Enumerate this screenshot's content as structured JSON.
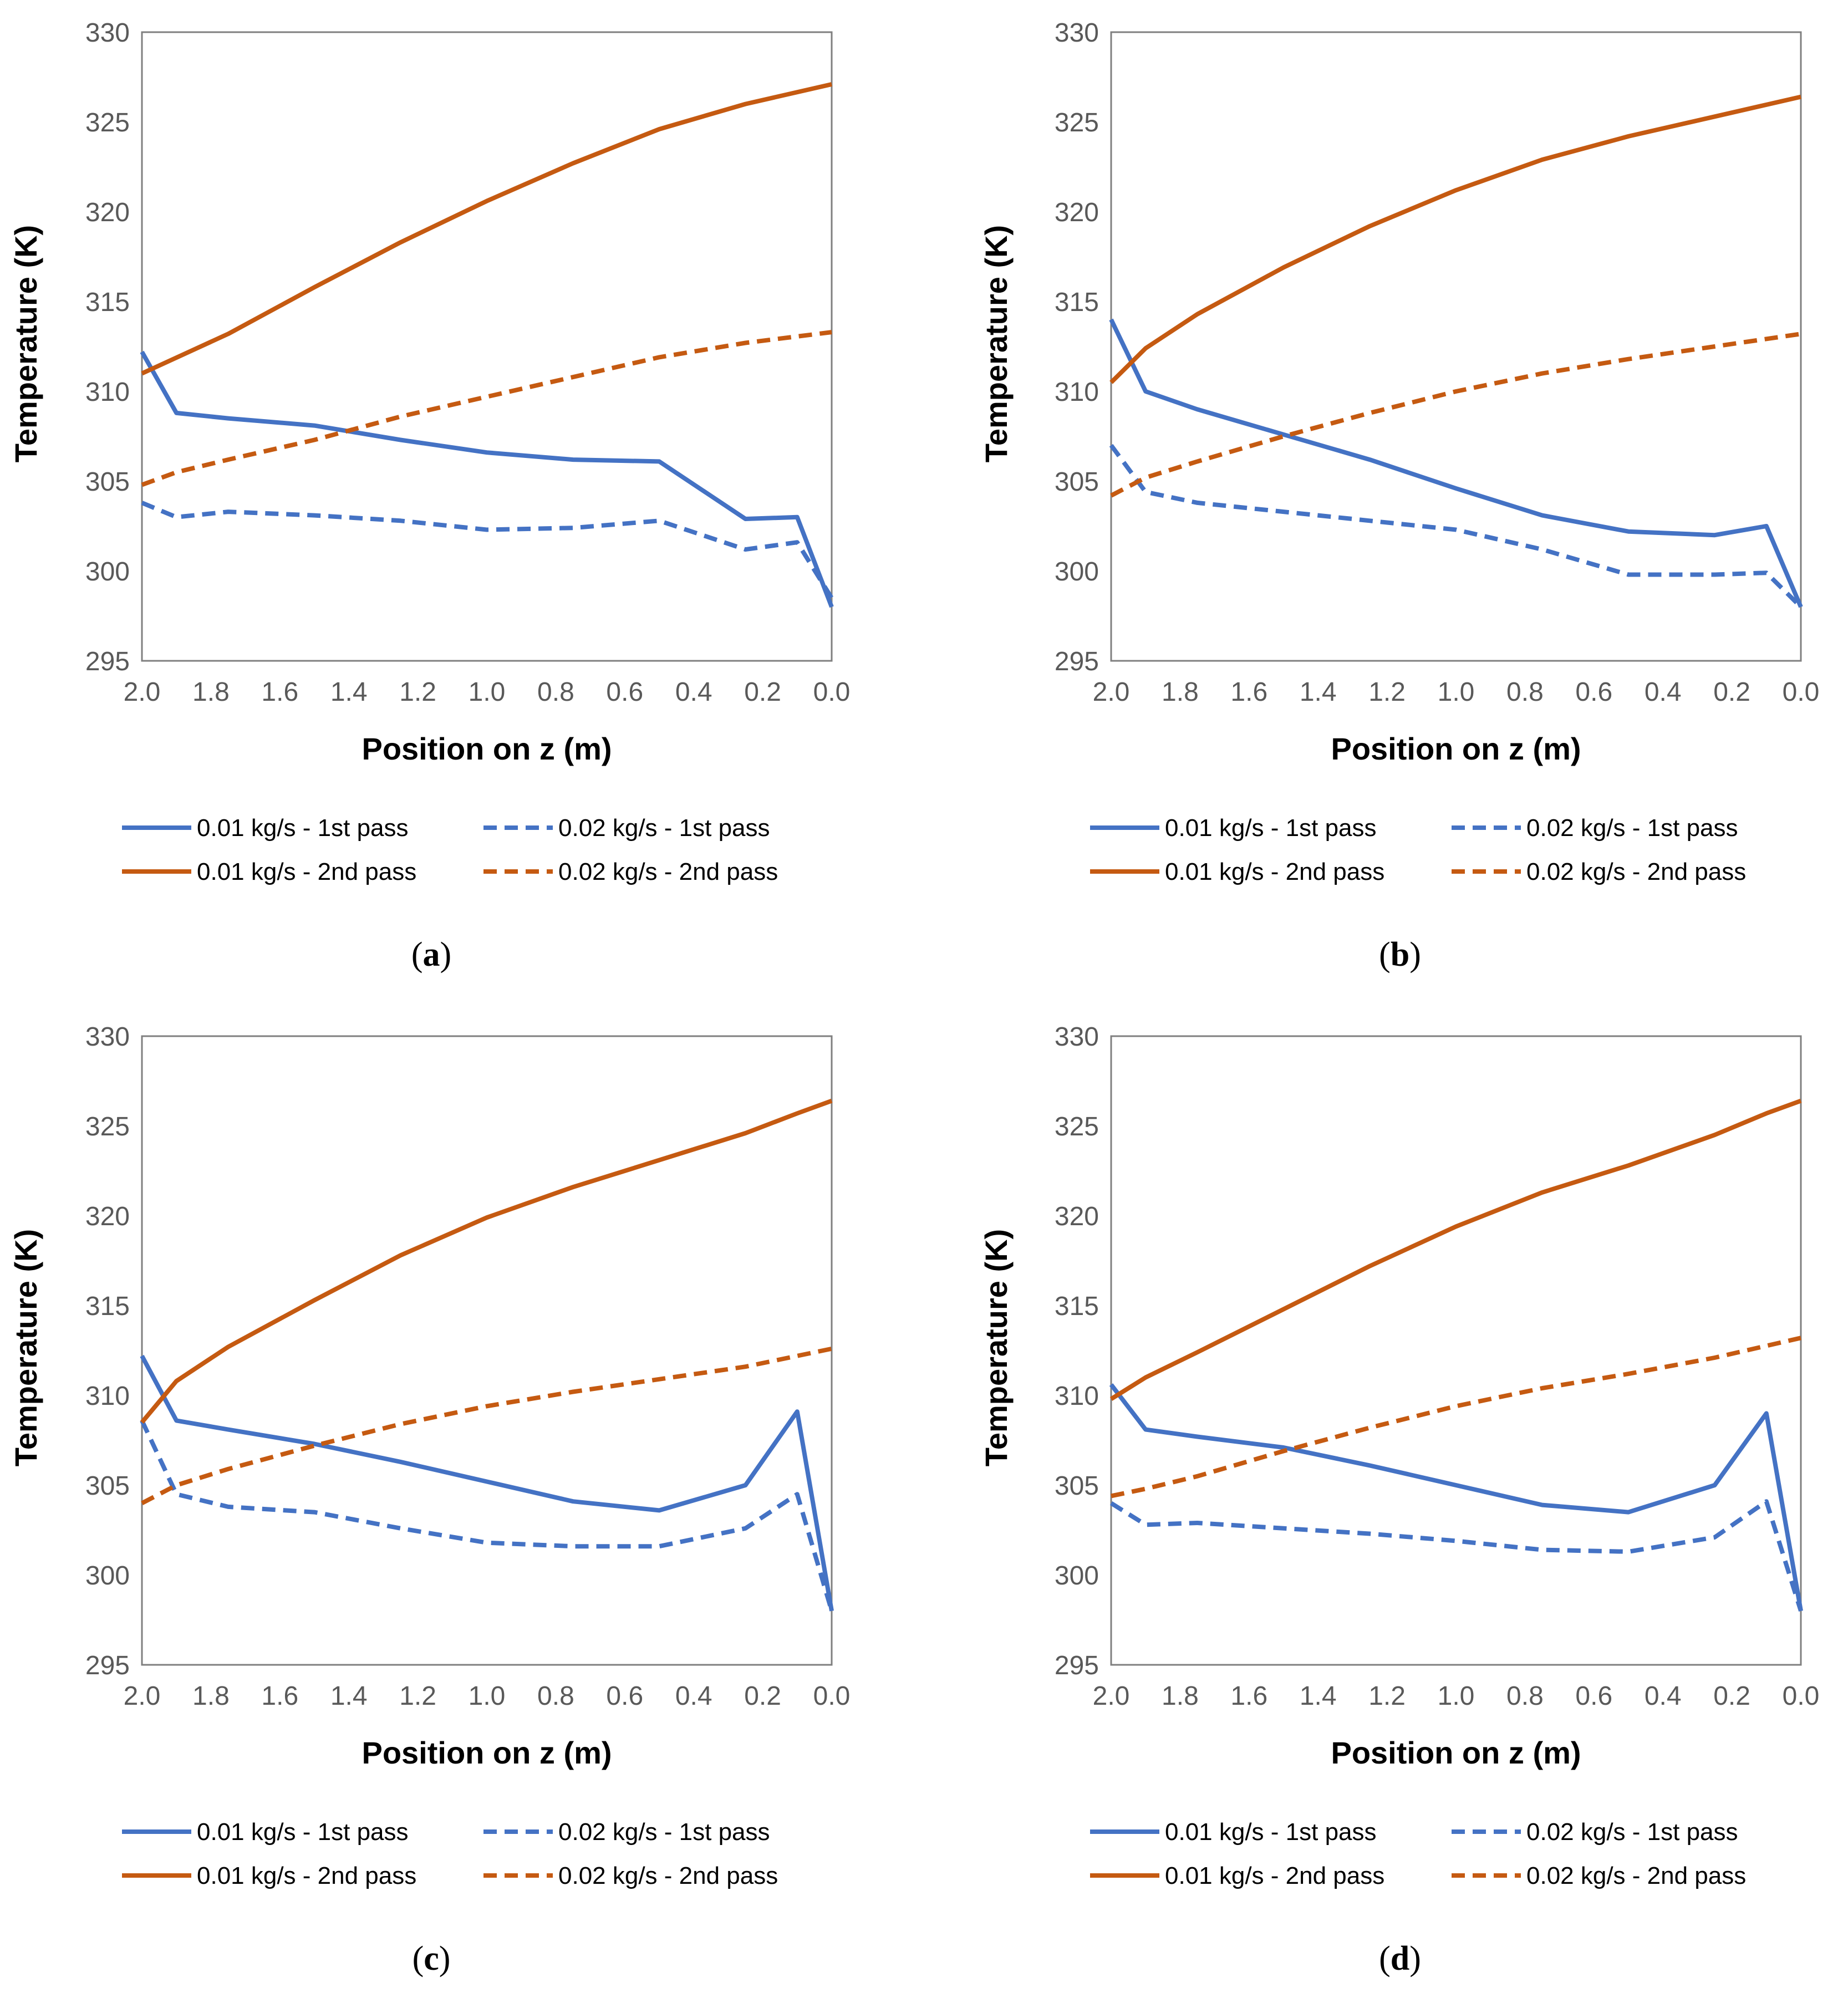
{
  "colors": {
    "blue": "#4472C4",
    "orange": "#C55A11",
    "axis": "#7f7f7f",
    "tick_text": "#595959"
  },
  "chart_data": [
    {
      "id": "a",
      "caption_open": "(",
      "caption_letter": "a",
      "caption_close": ")",
      "type": "line",
      "xlabel": "Position on z (m)",
      "ylabel": "Temperature (K)",
      "xlim": [
        2.0,
        0.0
      ],
      "ylim": [
        295,
        330
      ],
      "xticks": [
        "2.0",
        "1.8",
        "1.6",
        "1.4",
        "1.2",
        "1.0",
        "0.8",
        "0.6",
        "0.4",
        "0.2",
        "0.0"
      ],
      "yticks": [
        "295",
        "300",
        "305",
        "310",
        "315",
        "320",
        "325",
        "330"
      ],
      "series": [
        {
          "name": "0.01 kg/s - 1st pass",
          "color": "blue",
          "dashed": false,
          "x": [
            2.0,
            1.9,
            1.75,
            1.5,
            1.25,
            1.0,
            0.75,
            0.5,
            0.25,
            0.1,
            0.0
          ],
          "y": [
            312.2,
            308.8,
            308.5,
            308.1,
            307.3,
            306.6,
            306.2,
            306.1,
            302.9,
            303.0,
            298.0
          ]
        },
        {
          "name": "0.02 kg/s - 1st pass",
          "color": "blue",
          "dashed": true,
          "x": [
            2.0,
            1.9,
            1.75,
            1.5,
            1.25,
            1.0,
            0.75,
            0.5,
            0.25,
            0.1,
            0.0
          ],
          "y": [
            303.8,
            303.0,
            303.3,
            303.1,
            302.8,
            302.3,
            302.4,
            302.8,
            301.2,
            301.6,
            298.5
          ]
        },
        {
          "name": "0.01 kg/s - 2nd pass",
          "color": "orange",
          "dashed": false,
          "x": [
            2.0,
            1.75,
            1.5,
            1.25,
            1.0,
            0.75,
            0.5,
            0.25,
            0.0
          ],
          "y": [
            311.0,
            313.2,
            315.8,
            318.3,
            320.6,
            322.7,
            324.6,
            326.0,
            327.1
          ]
        },
        {
          "name": "0.02 kg/s - 2nd pass",
          "color": "orange",
          "dashed": true,
          "x": [
            2.0,
            1.9,
            1.75,
            1.5,
            1.25,
            1.0,
            0.75,
            0.5,
            0.25,
            0.0
          ],
          "y": [
            304.8,
            305.5,
            306.2,
            307.3,
            308.6,
            309.7,
            310.8,
            311.9,
            312.7,
            313.3
          ]
        }
      ]
    },
    {
      "id": "b",
      "caption_open": "(",
      "caption_letter": "b",
      "caption_close": ")",
      "type": "line",
      "xlabel": "Position on z (m)",
      "ylabel": "Temperature (K)",
      "xlim": [
        2.0,
        0.0
      ],
      "ylim": [
        295,
        330
      ],
      "xticks": [
        "2.0",
        "1.8",
        "1.6",
        "1.4",
        "1.2",
        "1.0",
        "0.8",
        "0.6",
        "0.4",
        "0.2",
        "0.0"
      ],
      "yticks": [
        "295",
        "300",
        "305",
        "310",
        "315",
        "320",
        "325",
        "330"
      ],
      "series": [
        {
          "name": "0.01 kg/s - 1st pass",
          "color": "blue",
          "dashed": false,
          "x": [
            2.0,
            1.9,
            1.75,
            1.5,
            1.25,
            1.0,
            0.75,
            0.5,
            0.25,
            0.1,
            0.0
          ],
          "y": [
            314.0,
            310.0,
            309.0,
            307.6,
            306.2,
            304.6,
            303.1,
            302.2,
            302.0,
            302.5,
            298.0
          ]
        },
        {
          "name": "0.02 kg/s - 1st pass",
          "color": "blue",
          "dashed": true,
          "x": [
            2.0,
            1.9,
            1.75,
            1.5,
            1.25,
            1.0,
            0.75,
            0.5,
            0.25,
            0.1,
            0.0
          ],
          "y": [
            307.0,
            304.4,
            303.8,
            303.3,
            302.8,
            302.3,
            301.2,
            299.8,
            299.8,
            299.9,
            298.0
          ]
        },
        {
          "name": "0.01 kg/s - 2nd pass",
          "color": "orange",
          "dashed": false,
          "x": [
            2.0,
            1.9,
            1.75,
            1.5,
            1.25,
            1.0,
            0.75,
            0.5,
            0.25,
            0.0
          ],
          "y": [
            310.5,
            312.4,
            314.3,
            316.9,
            319.2,
            321.2,
            322.9,
            324.2,
            325.3,
            326.4
          ]
        },
        {
          "name": "0.02 kg/s - 2nd pass",
          "color": "orange",
          "dashed": true,
          "x": [
            2.0,
            1.9,
            1.75,
            1.5,
            1.25,
            1.0,
            0.75,
            0.5,
            0.25,
            0.0
          ],
          "y": [
            304.2,
            305.2,
            306.1,
            307.5,
            308.8,
            310.0,
            311.0,
            311.8,
            312.5,
            313.2
          ]
        }
      ]
    },
    {
      "id": "c",
      "caption_open": "(",
      "caption_letter": "c",
      "caption_close": ")",
      "type": "line",
      "xlabel": "Position on z (m)",
      "ylabel": "Temperature (K)",
      "xlim": [
        2.0,
        0.0
      ],
      "ylim": [
        295,
        330
      ],
      "xticks": [
        "2.0",
        "1.8",
        "1.6",
        "1.4",
        "1.2",
        "1.0",
        "0.8",
        "0.6",
        "0.4",
        "0.2",
        "0.0"
      ],
      "yticks": [
        "295",
        "300",
        "305",
        "310",
        "315",
        "320",
        "325",
        "330"
      ],
      "series": [
        {
          "name": "0.01 kg/s - 1st pass",
          "color": "blue",
          "dashed": false,
          "x": [
            2.0,
            1.9,
            1.75,
            1.5,
            1.25,
            1.0,
            0.75,
            0.5,
            0.25,
            0.1,
            0.0
          ],
          "y": [
            312.2,
            308.6,
            308.1,
            307.3,
            306.3,
            305.2,
            304.1,
            303.6,
            305.0,
            309.1,
            298.0
          ]
        },
        {
          "name": "0.02 kg/s - 1st pass",
          "color": "blue",
          "dashed": true,
          "x": [
            2.0,
            1.9,
            1.75,
            1.5,
            1.25,
            1.0,
            0.75,
            0.5,
            0.25,
            0.1,
            0.0
          ],
          "y": [
            308.6,
            304.5,
            303.8,
            303.5,
            302.6,
            301.8,
            301.6,
            301.6,
            302.6,
            304.5,
            298.0
          ]
        },
        {
          "name": "0.01 kg/s - 2nd pass",
          "color": "orange",
          "dashed": false,
          "x": [
            2.0,
            1.9,
            1.75,
            1.5,
            1.25,
            1.0,
            0.75,
            0.5,
            0.25,
            0.1,
            0.0
          ],
          "y": [
            308.5,
            310.8,
            312.7,
            315.3,
            317.8,
            319.9,
            321.6,
            323.1,
            324.6,
            325.7,
            326.4
          ]
        },
        {
          "name": "0.02 kg/s - 2nd pass",
          "color": "orange",
          "dashed": true,
          "x": [
            2.0,
            1.9,
            1.75,
            1.5,
            1.25,
            1.0,
            0.75,
            0.5,
            0.25,
            0.0
          ],
          "y": [
            304.0,
            305.0,
            305.9,
            307.2,
            308.4,
            309.4,
            310.2,
            310.9,
            311.6,
            312.6
          ]
        }
      ]
    },
    {
      "id": "d",
      "caption_open": "(",
      "caption_letter": "d",
      "caption_close": ")",
      "type": "line",
      "xlabel": "Position on z (m)",
      "ylabel": "Temperature (K)",
      "xlim": [
        2.0,
        0.0
      ],
      "ylim": [
        295,
        330
      ],
      "xticks": [
        "2.0",
        "1.8",
        "1.6",
        "1.4",
        "1.2",
        "1.0",
        "0.8",
        "0.6",
        "0.4",
        "0.2",
        "0.0"
      ],
      "yticks": [
        "295",
        "300",
        "305",
        "310",
        "315",
        "320",
        "325",
        "330"
      ],
      "series": [
        {
          "name": "0.01 kg/s - 1st pass",
          "color": "blue",
          "dashed": false,
          "x": [
            2.0,
            1.9,
            1.75,
            1.5,
            1.25,
            1.0,
            0.75,
            0.5,
            0.25,
            0.1,
            0.0
          ],
          "y": [
            310.6,
            308.1,
            307.7,
            307.1,
            306.1,
            305.0,
            303.9,
            303.5,
            305.0,
            309.0,
            298.0
          ]
        },
        {
          "name": "0.02 kg/s - 1st pass",
          "color": "blue",
          "dashed": true,
          "x": [
            2.0,
            1.9,
            1.75,
            1.5,
            1.25,
            1.0,
            0.75,
            0.5,
            0.25,
            0.1,
            0.0
          ],
          "y": [
            304.0,
            302.8,
            302.9,
            302.6,
            302.3,
            301.9,
            301.4,
            301.3,
            302.1,
            304.1,
            298.0
          ]
        },
        {
          "name": "0.01 kg/s - 2nd pass",
          "color": "orange",
          "dashed": false,
          "x": [
            2.0,
            1.9,
            1.75,
            1.5,
            1.25,
            1.0,
            0.75,
            0.5,
            0.25,
            0.1,
            0.0
          ],
          "y": [
            309.8,
            311.0,
            312.4,
            314.8,
            317.2,
            319.4,
            321.3,
            322.8,
            324.5,
            325.7,
            326.4
          ]
        },
        {
          "name": "0.02 kg/s - 2nd pass",
          "color": "orange",
          "dashed": true,
          "x": [
            2.0,
            1.9,
            1.75,
            1.5,
            1.25,
            1.0,
            0.75,
            0.5,
            0.25,
            0.0
          ],
          "y": [
            304.4,
            304.8,
            305.5,
            306.9,
            308.2,
            309.4,
            310.4,
            311.2,
            312.1,
            313.2
          ]
        }
      ]
    }
  ]
}
